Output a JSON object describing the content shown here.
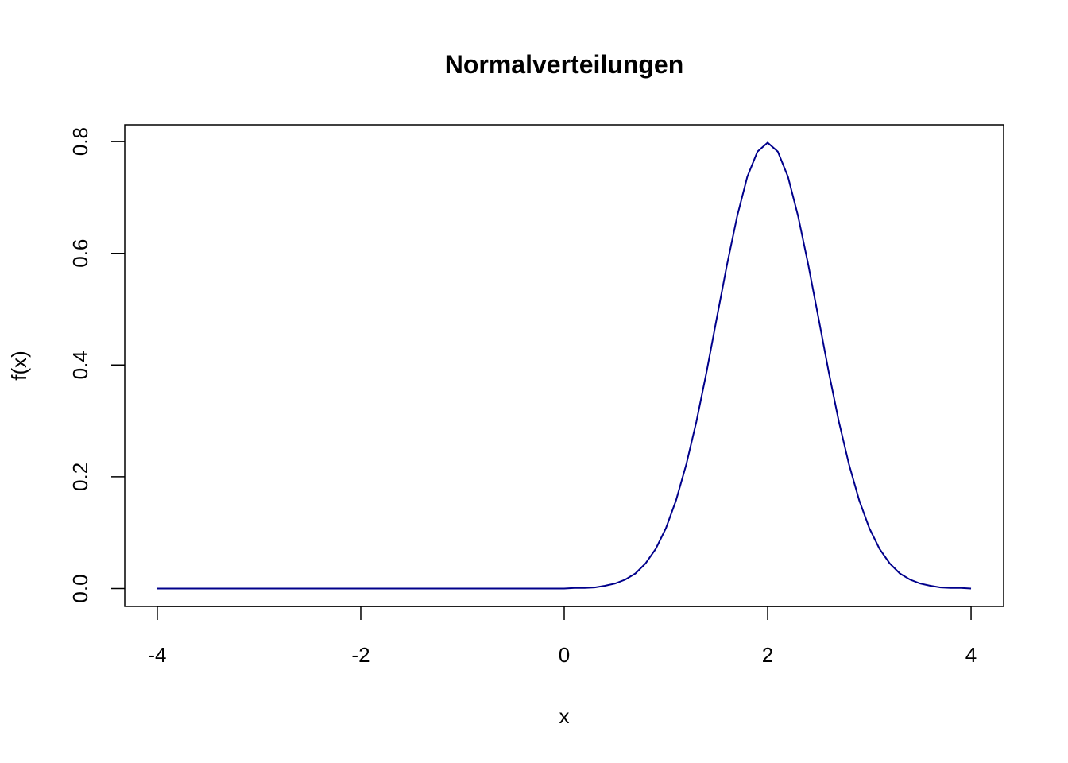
{
  "chart_data": {
    "type": "line",
    "title": "Normalverteilungen",
    "x_label": "x",
    "y_label": "f(x)",
    "x": [
      -4,
      -3,
      -2,
      -1,
      0,
      0.1,
      0.2,
      0.3,
      0.4,
      0.5,
      0.6,
      0.7,
      0.8,
      0.9,
      1.0,
      1.1,
      1.2,
      1.3,
      1.4,
      1.5,
      1.6,
      1.7,
      1.8,
      1.9,
      2.0,
      2.1,
      2.2,
      2.3,
      2.4,
      2.5,
      2.6,
      2.7,
      2.8,
      2.9,
      3.0,
      3.1,
      3.2,
      3.3,
      3.4,
      3.5,
      3.6,
      3.7,
      3.8,
      3.9,
      4.0
    ],
    "series": [
      {
        "color": "#00008b",
        "values": [
          0,
          0,
          0,
          0,
          0,
          0.001,
          0.001,
          0.002,
          0.005,
          0.009,
          0.016,
          0.027,
          0.045,
          0.071,
          0.108,
          0.158,
          0.222,
          0.299,
          0.388,
          0.484,
          0.579,
          0.666,
          0.737,
          0.782,
          0.798,
          0.782,
          0.737,
          0.666,
          0.579,
          0.484,
          0.388,
          0.299,
          0.222,
          0.158,
          0.108,
          0.071,
          0.045,
          0.027,
          0.016,
          0.009,
          0.005,
          0.002,
          0.001,
          0.001,
          0
        ]
      }
    ],
    "xlim": [
      -4.32,
      4.32
    ],
    "ylim": [
      -0.032,
      0.83
    ],
    "xticks": [
      -4,
      -2,
      0,
      2,
      4
    ],
    "yticks": [
      {
        "value": 0,
        "label": "0.0"
      },
      0.2,
      0.4,
      0.6,
      0.8
    ]
  }
}
